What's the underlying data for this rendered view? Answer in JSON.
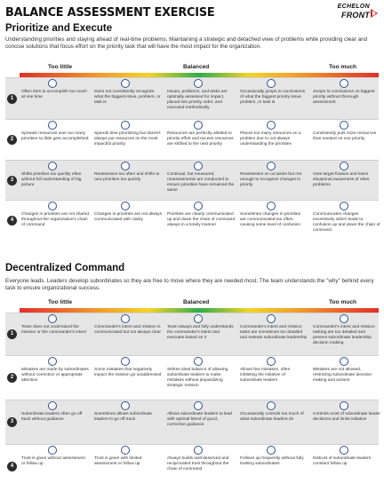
{
  "header": {
    "title": "BALANCE ASSESSMENT EXERCISE",
    "logo_top": "ECHELON",
    "logo_bottom": "FRONT"
  },
  "sections": [
    {
      "title": "Prioritize and Execute",
      "description": "Understanding priorities and staying ahead of real-time problems. Maintaining a strategic and detached view of problems while providing clear and concise solutions that focus effort on the priority task that will have the most impact for the organization.",
      "scale": {
        "left": "Too little",
        "middle": "Balanced",
        "right": "Too much"
      },
      "rows": [
        {
          "num": "1",
          "cells": [
            "Often tries to accomplish too much at one time",
            "Does not consistently recognize what the biggest issue, problem, or task is",
            "Issues, problems, and tasks are optimally assessed for impact, placed into priority order, and executed methodically",
            "Occasionally jumps to conclusions of what the biggest priority issue, problem, or task is",
            "Jumps to conclusions on biggest priority without thorough assessment"
          ]
        },
        {
          "num": "2",
          "cells": [
            "Spreads resources over too many priorities so little gets accomplished",
            "Spends time prioritizing but doesn't always put resources on the most impactful priority",
            "Resources are perfectly allotted to priority effort and excess resources are shifted to the next priority",
            "Places too many resources on a problem due to not always understanding the priorities",
            "Consistently puts more resources than needed on one priority"
          ]
        },
        {
          "num": "3",
          "cells": [
            "Shifts priorities too quickly often without full understanding of big picture",
            "Reassesses too often and shifts to new priorities too quickly",
            "Continual, but measured, reassessments are conducted to ensure priorities have remained the same",
            "Reassesses on occasion but not enough to recognize changes in priority",
            "Gets target fixation and loses situational awareness of other problems"
          ]
        },
        {
          "num": "4",
          "cells": [
            "Changes in priorities are not shared throughout the organization's chain of command",
            "Changes in priorities are not always communicated with clarity",
            "Priorities are clearly communicated up and down the chain of command always in a timely manner",
            "Sometimes changes in priorities are communicated too often, causing some level of confusion",
            "Communicates changes excessively which leads to confusion up and down the chain of command"
          ]
        }
      ]
    },
    {
      "title": "Decentralized Command",
      "description": "Everyone leads. Leaders develop subordinates so they are free to move where they are needed most. The team understands the \"why\" behind every task to ensure organizational success.",
      "scale": {
        "left": "Too little",
        "middle": "Balanced",
        "right": "Too much"
      },
      "rows": [
        {
          "num": "1",
          "cells": [
            "Team does not understand the mission or the commander's intent",
            "Commander's intent and mission is communicated but not always clear",
            "Team always and fully understands the commander's intent and executes based on it",
            "Commander's intent and mission tasks are sometimes too detailed and restrain subordinate leadership",
            "Commander's intent and mission tasking are too detailed and prevent subordinate leadership decision making"
          ]
        },
        {
          "num": "2",
          "cells": [
            "Mistakes are made by subordinates without correction or appropriate attention",
            "Some mistakes that negatively impact the mission go unaddressed",
            "Strikes ideal balance of allowing subordinate leaders to make mistakes without jeopardizing strategic mission",
            "Allows few mistakes, often inhibiting the initiative of subordinate leaders",
            "Mistakes are not allowed, restricting subordinate decision making and actions"
          ]
        },
        {
          "num": "3",
          "cells": [
            "Subordinate leaders often go off track without guidance",
            "Sometimes allows subordinate leaders to go off track",
            "Allows subordinate leaders to lead with optimal blend of good, corrective guidance",
            "Occasionally controls too much of what subordinate leaders do",
            "Controls most of subordinate leader decisions and limits initiative"
          ]
        },
        {
          "num": "4",
          "cells": [
            "Trust is given without assessment or follow up",
            "Trust is given with limited assessment or follow up",
            "Always builds well-deserved and reciprocated trust throughout the chain of command",
            "Follows up frequently without fully trusting subordinates",
            "Distrust of subordinate leaders constant follow up"
          ]
        }
      ]
    }
  ]
}
